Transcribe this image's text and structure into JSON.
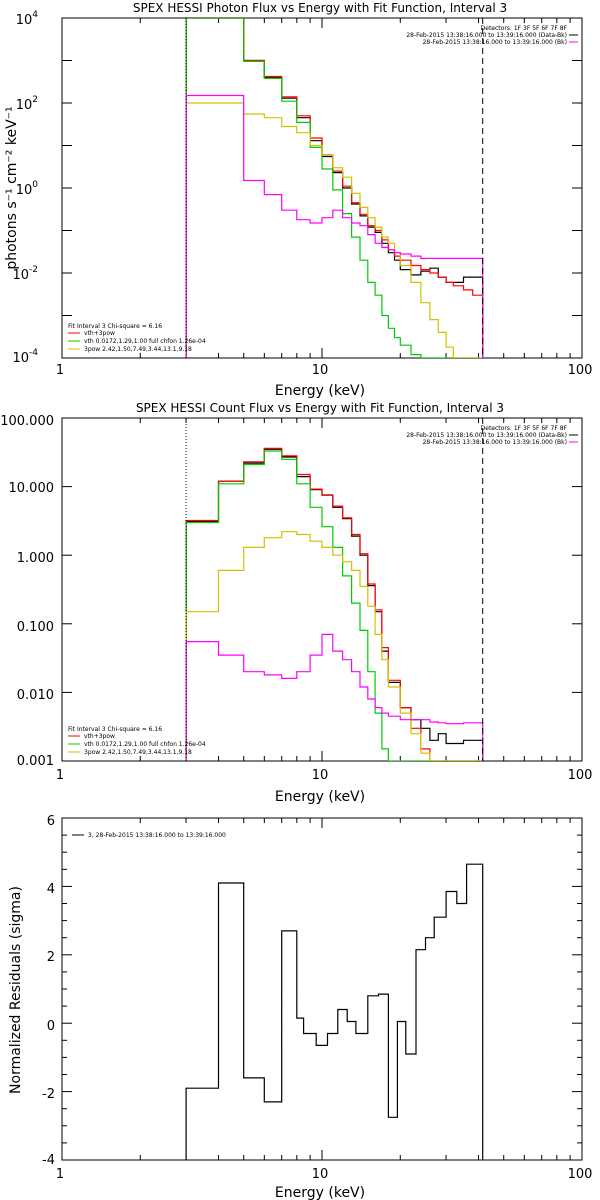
{
  "chart_data": [
    {
      "type": "line",
      "title": "SPEX HESSI Photon Flux vs Energy with Fit Function, Interval 3",
      "xlabel": "Energy (keV)",
      "ylabel": "photons s⁻¹ cm⁻² keV⁻¹",
      "xscale": "log",
      "yscale": "log",
      "xlim": [
        1,
        100
      ],
      "ylim": [
        0.0001,
        10000
      ],
      "xticks": [
        "1",
        "10",
        "100"
      ],
      "yticks": [
        {
          "base": "10",
          "exp": "4",
          "value": 10000
        },
        {
          "base": "10",
          "exp": "2",
          "value": 100
        },
        {
          "base": "10",
          "exp": "0",
          "value": 1
        },
        {
          "base": "10",
          "exp": "-2",
          "value": 0.01
        },
        {
          "base": "10",
          "exp": "-4",
          "value": 0.0001
        }
      ],
      "info_legend": [
        "Detectors: 1F 3F 5F 6F 7F 8F",
        "28-Feb-2015 13:38:16.000 to 13:39:16.000 (Data-Bk)",
        "28-Feb-2015 13:38:16.000 to 13:39:16.000 (Bk)"
      ],
      "info_colors": [
        "#000000",
        "#ff00ff"
      ],
      "fit_legend": [
        "Fit Interval 3   Chi-square = 6.16",
        "vth+3pow",
        "vth 0.0172,1.29,1.00  full chfon 1.26e-04",
        "3pow 2.42,1.50,7.49,3.44,13.1,9.18"
      ],
      "fit_colors": [
        "#ff0000",
        "#00cc00",
        "#d4c000"
      ],
      "vlines": [
        {
          "x": 3.0,
          "style": "dotted"
        },
        {
          "x": 41.5,
          "style": "dashed"
        }
      ],
      "edges": [
        3.0,
        3.33,
        3.67,
        4.0,
        4.5,
        5.0,
        5.5,
        6.0,
        6.5,
        7.0,
        7.5,
        8.0,
        8.5,
        9.0,
        9.5,
        10.0,
        10.5,
        11.0,
        11.5,
        12.0,
        12.5,
        13.0,
        14.0,
        15.0,
        16.0,
        17.0,
        18.0,
        19.0,
        20.0,
        22.0,
        24.0,
        26.0,
        28.0,
        30.0,
        32.0,
        35.0,
        38.0,
        41.5
      ],
      "series": [
        {
          "name": "Data-Bk",
          "color": "#000000",
          "values": [
            10000,
            10000,
            10000,
            10000,
            10000,
            1000,
            1000,
            400,
            400,
            130,
            130,
            45,
            45,
            13,
            13,
            5.5,
            5.5,
            2.3,
            2.3,
            1.0,
            1.0,
            0.42,
            0.22,
            0.12,
            0.09,
            0.05,
            0.03,
            0.02,
            0.012,
            0.009,
            0.011,
            0.013,
            0.008,
            0.006,
            0.006,
            0.008,
            0.008
          ]
        },
        {
          "name": "vth+3pow",
          "color": "#ff0000",
          "values": [
            10000,
            10000,
            10000,
            10000,
            10000,
            1000,
            1000,
            420,
            420,
            140,
            140,
            50,
            50,
            15,
            15,
            6,
            6,
            2.5,
            2.5,
            1.1,
            1.1,
            0.45,
            0.24,
            0.13,
            0.1,
            0.06,
            0.035,
            0.025,
            0.02,
            0.015,
            0.012,
            0.01,
            0.008,
            0.006,
            0.005,
            0.004,
            0.003
          ]
        },
        {
          "name": "vth",
          "color": "#00cc00",
          "values": [
            10000,
            10000,
            10000,
            10000,
            10000,
            950,
            950,
            380,
            380,
            110,
            110,
            35,
            35,
            9,
            9,
            2.8,
            2.8,
            0.9,
            0.9,
            0.25,
            0.25,
            0.07,
            0.02,
            0.006,
            0.003,
            0.001,
            0.0005,
            0.0003,
            0.0002,
            0.00012,
            0.0001,
            0.0001,
            0.0001,
            0.0001,
            0.0001,
            0.0001,
            0.0001
          ]
        },
        {
          "name": "3pow",
          "color": "#d4c000",
          "values": [
            100,
            100,
            100,
            100,
            100,
            55,
            55,
            45,
            45,
            28,
            28,
            20,
            20,
            10,
            10,
            6,
            6,
            3,
            3,
            1.8,
            1.8,
            0.75,
            0.35,
            0.2,
            0.12,
            0.07,
            0.05,
            0.03,
            0.015,
            0.006,
            0.002,
            0.0008,
            0.0004,
            0.00018,
            0.0001,
            0.0001,
            0.0001
          ]
        },
        {
          "name": "Bk",
          "color": "#ff00ff",
          "values": [
            150,
            150,
            150,
            150,
            150,
            1.5,
            1.5,
            0.7,
            0.7,
            0.3,
            0.3,
            0.18,
            0.18,
            0.15,
            0.15,
            0.2,
            0.2,
            0.3,
            0.3,
            0.2,
            0.2,
            0.15,
            0.13,
            0.08,
            0.05,
            0.04,
            0.035,
            0.03,
            0.028,
            0.025,
            0.022,
            0.022,
            0.022,
            0.022,
            0.022,
            0.022,
            0.022
          ]
        }
      ]
    },
    {
      "type": "line",
      "title": "SPEX HESSI Count Flux vs Energy with Fit Function, Interval 3",
      "xlabel": "Energy (keV)",
      "ylabel": "",
      "xscale": "log",
      "yscale": "log",
      "xlim": [
        1,
        100
      ],
      "ylim": [
        0.001,
        100
      ],
      "xticks": [
        "1",
        "10",
        "100"
      ],
      "yticks": [
        {
          "label": "100.000",
          "value": 100
        },
        {
          "label": "10.000",
          "value": 10
        },
        {
          "label": "1.000",
          "value": 1
        },
        {
          "label": "0.100",
          "value": 0.1
        },
        {
          "label": "0.010",
          "value": 0.01
        },
        {
          "label": "0.001",
          "value": 0.001
        }
      ],
      "info_legend": [
        "Detectors: 1F 3F 5F 6F 7F 8F",
        "28-Feb-2015 13:38:16.000 to 13:39:16.000 (Data-Bk)",
        "28-Feb-2015 13:38:16.000 to 13:39:16.000 (Bk)"
      ],
      "info_colors": [
        "#000000",
        "#ff00ff"
      ],
      "fit_legend": [
        "Fit Interval 3   Chi-square = 6.16",
        "vth+3pow",
        "vth 0.0172,1.29,1.00  full chfon 1.26e-04",
        "3pow 2.42,1.50,7.49,3.44,13.1,9.18"
      ],
      "fit_colors": [
        "#ff0000",
        "#00cc00",
        "#d4c000"
      ],
      "vlines": [
        {
          "x": 3.0,
          "style": "dotted"
        },
        {
          "x": 41.5,
          "style": "dashed"
        }
      ],
      "edges": [
        3.0,
        4.0,
        5.0,
        6.0,
        7.0,
        8.0,
        9.0,
        10.0,
        11.0,
        12.0,
        13.0,
        14.0,
        15.0,
        16.0,
        17.0,
        18.0,
        20.0,
        22.0,
        24.0,
        26.0,
        28.0,
        30.0,
        35.0,
        41.5
      ],
      "series": [
        {
          "name": "Data-Bk",
          "color": "#000000",
          "values": [
            3.1,
            12,
            22,
            35,
            27,
            14,
            9,
            7.5,
            5,
            3.4,
            1.9,
            1.0,
            0.36,
            0.15,
            0.04,
            0.014,
            0.006,
            0.004,
            0.003,
            0.002,
            0.0025,
            0.0018,
            0.002
          ]
        },
        {
          "name": "vth+3pow",
          "color": "#ff0000",
          "values": [
            3.2,
            12,
            23,
            36,
            28,
            15,
            9.2,
            7.6,
            5.2,
            3.5,
            2.0,
            1.05,
            0.38,
            0.16,
            0.045,
            0.015,
            0.006,
            0.003,
            0.0015,
            0.001,
            0.001,
            0.001,
            0.001
          ]
        },
        {
          "name": "vth",
          "color": "#00cc00",
          "values": [
            3.0,
            11,
            21,
            33,
            25,
            11,
            5,
            2.6,
            1.3,
            0.5,
            0.2,
            0.08,
            0.02,
            0.005,
            0.0015,
            0.001,
            0.001,
            0.001,
            0.001,
            0.001,
            0.001,
            0.001,
            0.001
          ]
        },
        {
          "name": "3pow",
          "color": "#d4c000",
          "values": [
            0.15,
            0.6,
            1.3,
            1.8,
            2.2,
            2.0,
            1.6,
            1.3,
            1.0,
            0.8,
            0.6,
            0.35,
            0.18,
            0.07,
            0.03,
            0.012,
            0.005,
            0.0025,
            0.0013,
            0.001,
            0.001,
            0.001,
            0.001
          ]
        },
        {
          "name": "Bk",
          "color": "#ff00ff",
          "values": [
            0.055,
            0.035,
            0.02,
            0.018,
            0.016,
            0.02,
            0.035,
            0.07,
            0.04,
            0.03,
            0.02,
            0.012,
            0.008,
            0.006,
            0.005,
            0.0045,
            0.004,
            0.004,
            0.004,
            0.0037,
            0.0036,
            0.0035,
            0.0036
          ]
        }
      ]
    },
    {
      "type": "line",
      "title": "",
      "xlabel": "Energy (keV)",
      "ylabel": "Normalized Residuals (sigma)",
      "xscale": "log",
      "yscale": "linear",
      "xlim": [
        1,
        100
      ],
      "ylim": [
        -4,
        6
      ],
      "xticks": [
        "1",
        "10",
        "100"
      ],
      "yticks": [
        "6",
        "4",
        "2",
        "0",
        "-2",
        "-4"
      ],
      "legend": [
        "3, 28-Feb-2015 13:38:16.000 to 13:39:16.000"
      ],
      "edges": [
        3.0,
        4.0,
        5.0,
        6.0,
        7.0,
        7.5,
        8.0,
        8.5,
        9.5,
        10.5,
        11.5,
        12.5,
        13.5,
        15.0,
        16.5,
        18.0,
        19.5,
        21.0,
        23.0,
        25.0,
        27.0,
        30.0,
        33.0,
        36.0,
        41.5
      ],
      "series": [
        {
          "name": "3, 28-Feb-2015 13:38:16.000 to 13:39:16.000",
          "color": "#000000",
          "values": [
            -1.9,
            4.1,
            -1.6,
            -2.3,
            2.7,
            2.7,
            0.15,
            -0.3,
            -0.65,
            -0.3,
            0.4,
            0.05,
            -0.3,
            0.8,
            0.85,
            -2.75,
            0.05,
            -0.9,
            2.15,
            2.5,
            3.1,
            3.85,
            3.5,
            4.65
          ]
        }
      ]
    }
  ]
}
